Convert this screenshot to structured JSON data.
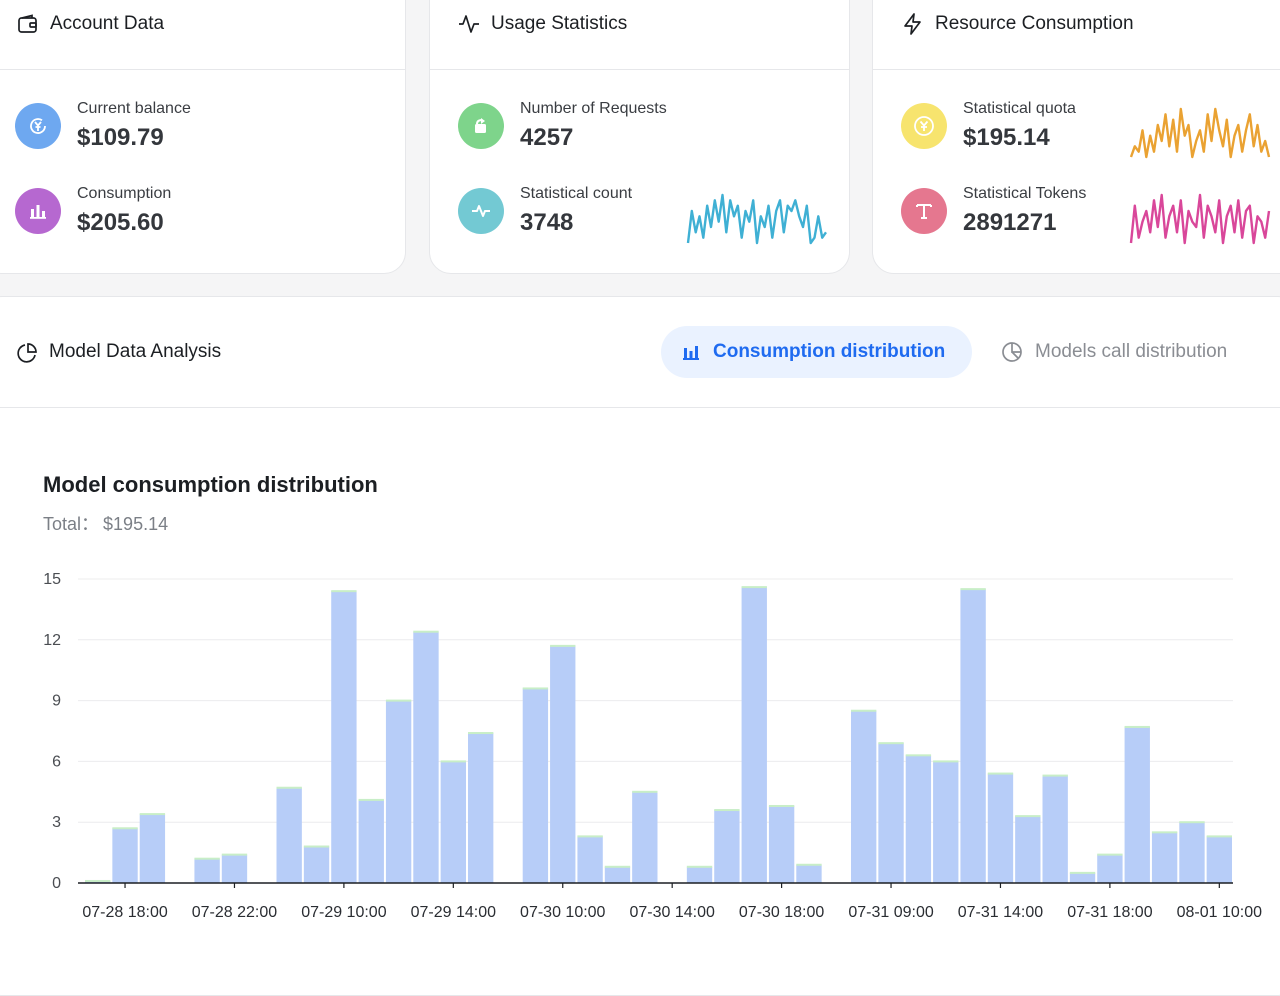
{
  "account_card": {
    "title": "Account Data",
    "icon": "wallet-icon",
    "stats": [
      {
        "label": "Current balance",
        "value": "$109.79",
        "icon": "yen-exchange-icon",
        "color": "#6ea8f0"
      },
      {
        "label": "Consumption",
        "value": "$205.60",
        "icon": "bar-chart-icon",
        "color": "#b668d0"
      }
    ]
  },
  "usage_card": {
    "title": "Usage Statistics",
    "icon": "activity-icon",
    "stats": [
      {
        "label": "Number of Requests",
        "value": "4257",
        "icon": "refresh-send-icon",
        "color": "#7ed48b"
      },
      {
        "label": "Statistical count",
        "value": "3748",
        "icon": "pulse-icon",
        "color": "#73c9d3"
      }
    ],
    "spark_color": "#3fb0d4",
    "spark_values": [
      1,
      7,
      3,
      6,
      2,
      8,
      4,
      9,
      5,
      10,
      3,
      9,
      6,
      8,
      2,
      7,
      5,
      9,
      1,
      6,
      4,
      8,
      2,
      7,
      9,
      3,
      8,
      7,
      9,
      6,
      4,
      8,
      1,
      2,
      6,
      2,
      3
    ]
  },
  "resource_card": {
    "title": "Resource Consumption",
    "icon": "lightning-icon",
    "stats": [
      {
        "label": "Statistical quota",
        "value": "$195.14",
        "icon": "yen-coin-icon",
        "color": "#f7e46e"
      },
      {
        "label": "Statistical Tokens",
        "value": "2891271",
        "icon": "text-t-icon",
        "color": "#e5778f"
      }
    ],
    "quota_spark_color": "#eaa232",
    "quota_spark_values": [
      1,
      3,
      2,
      6,
      1,
      5,
      2,
      7,
      4,
      9,
      3,
      8,
      2,
      10,
      5,
      7,
      1,
      4,
      6,
      2,
      9,
      4,
      10,
      6,
      3,
      8,
      1,
      5,
      7,
      2,
      6,
      9,
      3,
      7,
      2,
      4,
      1
    ],
    "tokens_spark_color": "#d9479a",
    "tokens_spark_values": [
      1,
      8,
      2,
      5,
      7,
      3,
      9,
      4,
      10,
      2,
      6,
      8,
      3,
      9,
      1,
      7,
      5,
      4,
      10,
      2,
      8,
      6,
      3,
      9,
      1,
      6,
      8,
      3,
      9,
      2,
      7,
      8,
      1,
      6,
      5,
      2,
      7
    ]
  },
  "analysis": {
    "title": "Model Data Analysis",
    "icon": "pie-chart-icon",
    "tabs": [
      {
        "label": "Consumption distribution",
        "icon": "bar-chart-icon",
        "active": true
      },
      {
        "label": "Models call distribution",
        "icon": "pie-chart-icon",
        "active": false
      }
    ],
    "chart_title": "Model consumption distribution",
    "total_label": "Total：",
    "total_value": "$195.14"
  },
  "chart_data": {
    "type": "bar",
    "title": "Model consumption distribution",
    "ylim": [
      0,
      15
    ],
    "yticks": [
      0,
      3,
      6,
      9,
      12,
      15
    ],
    "grid": true,
    "bar_color": "#b7cdf8",
    "cap_color": "#c8eec7",
    "xtick_labels": [
      "07-28 18:00",
      "07-28 22:00",
      "07-29 10:00",
      "07-29 14:00",
      "07-30 10:00",
      "07-30 14:00",
      "07-30 18:00",
      "07-31 09:00",
      "07-31 14:00",
      "07-31 18:00",
      "08-01 10:00"
    ],
    "xtick_slots": [
      1,
      5,
      9,
      13,
      17,
      21,
      25,
      29,
      33,
      37,
      41
    ],
    "values": [
      0.1,
      2.7,
      3.4,
      0,
      1.2,
      1.4,
      0,
      4.7,
      1.8,
      14.4,
      4.1,
      9.0,
      12.4,
      6.0,
      7.4,
      0,
      9.6,
      11.7,
      2.3,
      0.8,
      4.5,
      0,
      0.8,
      3.6,
      14.6,
      3.8,
      0.9,
      0,
      8.5,
      6.9,
      6.3,
      6.0,
      14.5,
      5.4,
      3.3,
      5.3,
      0.5,
      1.4,
      7.7,
      2.5,
      3.0,
      2.3
    ]
  }
}
